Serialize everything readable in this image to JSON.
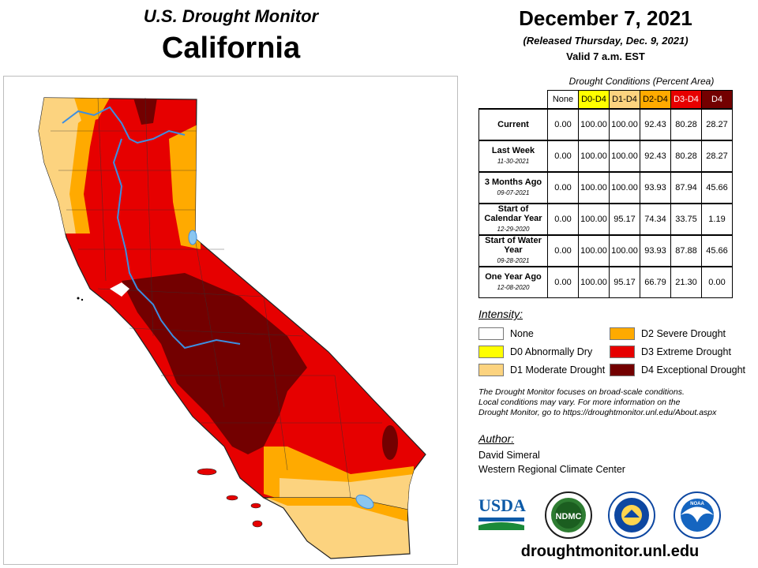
{
  "header": {
    "subtitle": "U.S. Drought Monitor",
    "state": "California"
  },
  "date": {
    "main": "December 7, 2021",
    "released": "(Released Thursday, Dec. 9, 2021)",
    "valid": "Valid 7 a.m. EST"
  },
  "table": {
    "title": "Drought Conditions (Percent Area)",
    "columns": [
      "None",
      "D0-D4",
      "D1-D4",
      "D2-D4",
      "D3-D4",
      "D4"
    ],
    "rows": [
      {
        "label": "Current",
        "date": "",
        "values": [
          "0.00",
          "100.00",
          "100.00",
          "92.43",
          "80.28",
          "28.27"
        ]
      },
      {
        "label": "Last Week",
        "date": "11-30-2021",
        "values": [
          "0.00",
          "100.00",
          "100.00",
          "92.43",
          "80.28",
          "28.27"
        ]
      },
      {
        "label": "3 Months Ago",
        "date": "09-07-2021",
        "values": [
          "0.00",
          "100.00",
          "100.00",
          "93.93",
          "87.94",
          "45.66"
        ]
      },
      {
        "label": "Start of Calendar Year",
        "date": "12-29-2020",
        "values": [
          "0.00",
          "100.00",
          "95.17",
          "74.34",
          "33.75",
          "1.19"
        ]
      },
      {
        "label": "Start of Water Year",
        "date": "09-28-2021",
        "values": [
          "0.00",
          "100.00",
          "100.00",
          "93.93",
          "87.88",
          "45.66"
        ]
      },
      {
        "label": "One Year Ago",
        "date": "12-08-2020",
        "values": [
          "0.00",
          "100.00",
          "95.17",
          "66.79",
          "21.30",
          "0.00"
        ]
      }
    ]
  },
  "legend": {
    "title": "Intensity:",
    "items": [
      {
        "label": "None",
        "color": "#ffffff"
      },
      {
        "label": "D0 Abnormally Dry",
        "color": "#ffff00"
      },
      {
        "label": "D1 Moderate Drought",
        "color": "#fcd37f"
      },
      {
        "label": "D2 Severe Drought",
        "color": "#ffaa00"
      },
      {
        "label": "D3 Extreme Drought",
        "color": "#e60000"
      },
      {
        "label": "D4 Exceptional Drought",
        "color": "#730000"
      }
    ]
  },
  "note": {
    "line1": "The Drought Monitor focuses on broad-scale conditions.",
    "line2": "Local conditions may vary. For more information on the",
    "line3": "Drought Monitor, go to https://droughtmonitor.unl.edu/About.aspx"
  },
  "author": {
    "heading": "Author:",
    "name": "David Simeral",
    "org": "Western Regional Climate Center"
  },
  "logos": {
    "usda": "USDA",
    "ndmc": "NDMC",
    "ndmc_ring": "NATIONAL DROUGHT MITIGATION CENTER · UNIVERSITY OF NEBRASKA",
    "commerce_ring": "DEPARTMENT OF COMMERCE · UNITED STATES OF AMERICA",
    "noaa": "NOAA",
    "noaa_ring": "NATIONAL OCEANIC AND ATMOSPHERIC ADMINISTRATION · U.S. DEPARTMENT OF COMMERCE"
  },
  "url": "droughtmonitor.unl.edu"
}
